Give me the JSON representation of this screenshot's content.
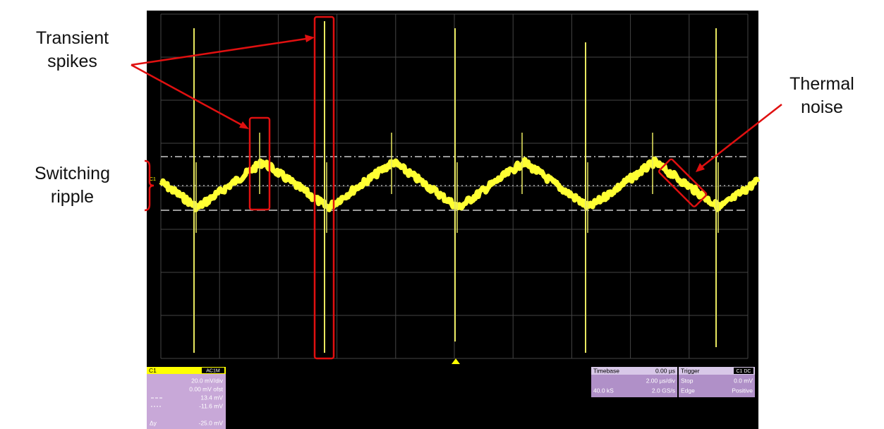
{
  "annotations": {
    "transient": "Transient spikes",
    "ripple": "Switching ripple",
    "thermal": "Thermal noise"
  },
  "channel": {
    "name": "C1",
    "coupling": "AC1M",
    "rows": [
      "20.0 mV/div",
      "0.00 mV ofst",
      "13.4 mV",
      "-11.6 mV",
      "-25.0 mV"
    ],
    "delta": "Δy",
    "marker": "C1"
  },
  "timebase": {
    "title": "Timebase",
    "delay": "0.00 µs",
    "scale": "2.00 µs/div",
    "samples": "40.0 kS",
    "rate": "2.0 GS/s"
  },
  "trigger": {
    "title": "Trigger",
    "source": "C1 DC",
    "mode": "Stop",
    "level": "0.0 mV",
    "type": "Edge",
    "slope": "Positive"
  }
}
